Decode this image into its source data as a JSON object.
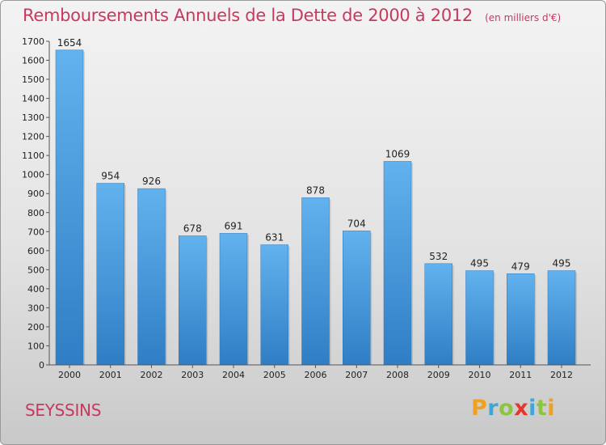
{
  "header": {
    "title": "Remboursements Annuels de la Dette de 2000 à 2012",
    "subtitle": "(en milliers d'€)"
  },
  "footer": {
    "commune": "SEYSSINS",
    "brand": "Proxiti"
  },
  "colors": {
    "title": "#c8395e",
    "bar_top": "#62b2ee",
    "bar_bottom": "#2f7ec5",
    "brand_letters": [
      "#f0a021",
      "#3fa7d8",
      "#8cc63e",
      "#e5352c",
      "#3fa7d8",
      "#8cc63e",
      "#f0a021"
    ]
  },
  "chart_data": {
    "type": "bar",
    "title": "Remboursements Annuels de la Dette de 2000 à 2012",
    "subtitle": "(en milliers d'€)",
    "categories": [
      "2000",
      "2001",
      "2002",
      "2003",
      "2004",
      "2005",
      "2006",
      "2007",
      "2008",
      "2009",
      "2010",
      "2011",
      "2012"
    ],
    "values": [
      1654,
      954,
      926,
      678,
      691,
      631,
      878,
      704,
      1069,
      532,
      495,
      479,
      495
    ],
    "ylim": [
      0,
      1700
    ],
    "yticks": [
      0,
      100,
      200,
      300,
      400,
      500,
      600,
      700,
      800,
      900,
      1000,
      1100,
      1200,
      1300,
      1400,
      1500,
      1600,
      1700
    ],
    "xlabel": "",
    "ylabel": "",
    "grid": false,
    "data_labels": true
  }
}
